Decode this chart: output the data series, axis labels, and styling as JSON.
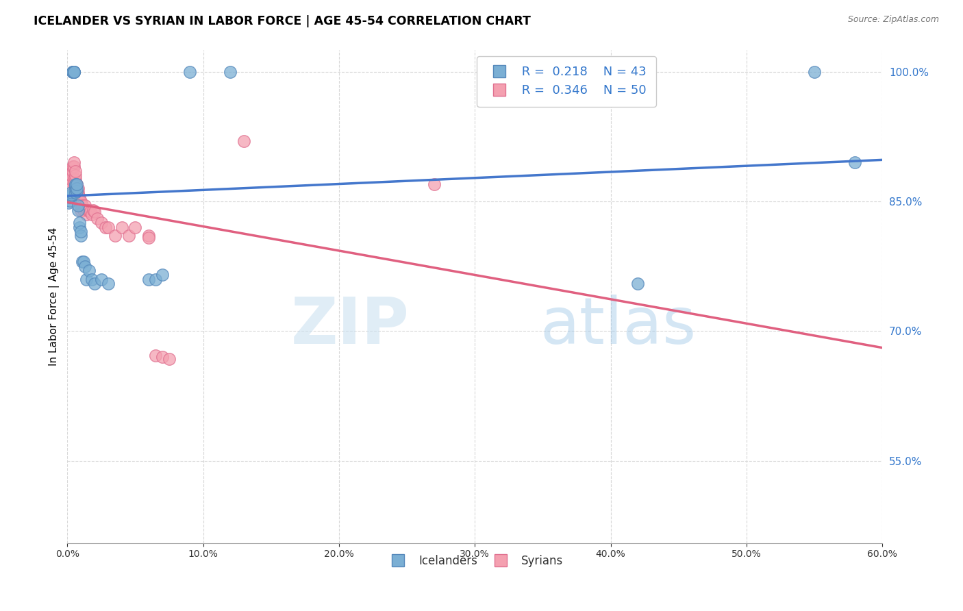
{
  "title": "ICELANDER VS SYRIAN IN LABOR FORCE | AGE 45-54 CORRELATION CHART",
  "source": "Source: ZipAtlas.com",
  "ylabel": "In Labor Force | Age 45-54",
  "x_min": 0.0,
  "x_max": 0.6,
  "y_min": 0.455,
  "y_max": 1.025,
  "x_ticks": [
    0.0,
    0.1,
    0.2,
    0.3,
    0.4,
    0.5,
    0.6
  ],
  "y_ticks": [
    0.55,
    0.7,
    0.85,
    1.0
  ],
  "grid_color": "#d8d8d8",
  "background_color": "#ffffff",
  "icelander_color": "#7bafd4",
  "icelander_edge": "#5588bb",
  "syrian_color": "#f4a0b0",
  "syrian_edge": "#e07090",
  "icelander_line_color": "#4477cc",
  "syrian_line_color": "#e06080",
  "legend_R_icelander": "0.218",
  "legend_N_icelander": "43",
  "legend_R_syrian": "0.346",
  "legend_N_syrian": "50",
  "watermark_zip": "ZIP",
  "watermark_atlas": "atlas",
  "icelander_x": [
    0.001,
    0.002,
    0.002,
    0.003,
    0.003,
    0.003,
    0.004,
    0.004,
    0.004,
    0.005,
    0.005,
    0.005,
    0.005,
    0.006,
    0.006,
    0.006,
    0.006,
    0.007,
    0.007,
    0.007,
    0.008,
    0.008,
    0.009,
    0.009,
    0.01,
    0.01,
    0.011,
    0.012,
    0.013,
    0.014,
    0.016,
    0.018,
    0.02,
    0.025,
    0.03,
    0.06,
    0.065,
    0.07,
    0.09,
    0.12,
    0.42,
    0.55,
    0.58
  ],
  "icelander_y": [
    0.848,
    0.851,
    0.855,
    0.856,
    0.858,
    0.86,
    1.0,
    1.0,
    1.0,
    1.0,
    1.0,
    1.0,
    1.0,
    0.86,
    0.865,
    0.868,
    0.87,
    0.862,
    0.865,
    0.87,
    0.84,
    0.845,
    0.82,
    0.825,
    0.81,
    0.815,
    0.78,
    0.78,
    0.775,
    0.76,
    0.77,
    0.76,
    0.755,
    0.76,
    0.755,
    0.76,
    0.76,
    0.765,
    1.0,
    1.0,
    0.755,
    1.0,
    0.895
  ],
  "syrian_x": [
    0.001,
    0.002,
    0.002,
    0.003,
    0.003,
    0.004,
    0.004,
    0.005,
    0.005,
    0.005,
    0.005,
    0.006,
    0.006,
    0.006,
    0.007,
    0.007,
    0.007,
    0.008,
    0.008,
    0.008,
    0.009,
    0.009,
    0.01,
    0.01,
    0.01,
    0.011,
    0.012,
    0.013,
    0.014,
    0.015,
    0.016,
    0.017,
    0.018,
    0.019,
    0.02,
    0.022,
    0.025,
    0.028,
    0.03,
    0.035,
    0.04,
    0.045,
    0.05,
    0.06,
    0.06,
    0.065,
    0.07,
    0.075,
    0.13,
    0.27
  ],
  "syrian_y": [
    0.855,
    0.87,
    0.885,
    0.875,
    0.88,
    0.885,
    0.89,
    0.87,
    0.875,
    0.89,
    0.895,
    0.875,
    0.88,
    0.885,
    0.855,
    0.86,
    0.87,
    0.855,
    0.86,
    0.865,
    0.85,
    0.855,
    0.84,
    0.845,
    0.85,
    0.845,
    0.84,
    0.845,
    0.835,
    0.84,
    0.84,
    0.838,
    0.835,
    0.84,
    0.838,
    0.83,
    0.825,
    0.82,
    0.82,
    0.81,
    0.82,
    0.81,
    0.82,
    0.81,
    0.808,
    0.672,
    0.67,
    0.668,
    0.92,
    0.87
  ]
}
